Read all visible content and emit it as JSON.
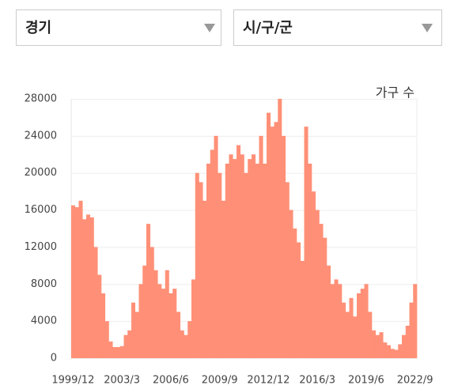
{
  "dropdowns": [
    "경기",
    "시/구/군"
  ],
  "chart_data": {
    "type": "bar",
    "axis_label": "가구 수",
    "color": "#ff8a70",
    "grid": true,
    "ylim": [
      0,
      28000
    ],
    "yticks": [
      0,
      4000,
      8000,
      12000,
      16000,
      20000,
      24000,
      28000
    ],
    "categories": [
      "1999/12",
      null,
      null,
      null,
      null,
      null,
      null,
      null,
      null,
      null,
      null,
      null,
      null,
      "2003/3",
      null,
      null,
      null,
      null,
      null,
      null,
      null,
      null,
      null,
      null,
      null,
      null,
      "2006/6",
      null,
      null,
      null,
      null,
      null,
      null,
      null,
      null,
      null,
      null,
      null,
      null,
      "2009/9",
      null,
      null,
      null,
      null,
      null,
      null,
      null,
      null,
      null,
      null,
      null,
      null,
      "2012/12",
      null,
      null,
      null,
      null,
      null,
      null,
      null,
      null,
      null,
      null,
      null,
      null,
      "2016/3",
      null,
      null,
      null,
      null,
      null,
      null,
      null,
      null,
      null,
      null,
      null,
      null,
      "2019/6",
      null,
      null,
      null,
      null,
      null,
      null,
      null,
      null,
      null,
      null,
      null,
      null,
      "2022/9"
    ],
    "values": [
      16500,
      16300,
      17000,
      15000,
      15500,
      15200,
      12000,
      9000,
      7000,
      4000,
      1800,
      1200,
      1200,
      1300,
      2500,
      3000,
      6000,
      5000,
      8000,
      10000,
      14500,
      12000,
      9500,
      8000,
      7500,
      9500,
      7000,
      7500,
      5000,
      3000,
      2500,
      4000,
      8500,
      20000,
      19000,
      17000,
      21000,
      22500,
      24000,
      20000,
      17000,
      21000,
      22000,
      21500,
      23000,
      22000,
      20000,
      21500,
      22000,
      21000,
      24000,
      21000,
      26500,
      25000,
      25500,
      28000,
      24000,
      19000,
      16000,
      14000,
      12500,
      10500,
      25000,
      21000,
      18000,
      16000,
      14500,
      13000,
      10000,
      8000,
      8500,
      8000,
      6000,
      5000,
      6500,
      4500,
      7000,
      7500,
      8000,
      5000,
      3000,
      2500,
      2800,
      1700,
      1400,
      1000,
      900,
      1500,
      2500,
      3500,
      6000,
      8000
    ]
  }
}
